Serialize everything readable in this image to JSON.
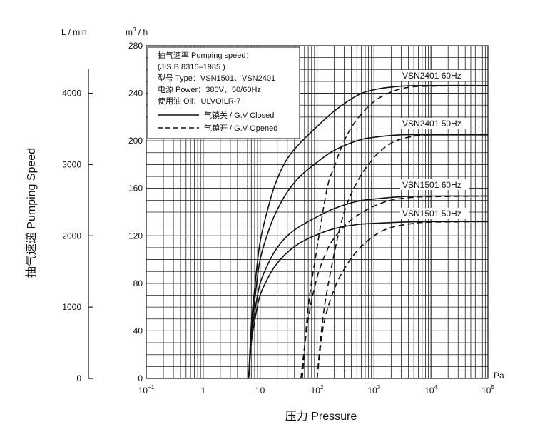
{
  "chart_data": {
    "type": "line",
    "xlabel": "压力 Pressure",
    "x_unit": "Pa",
    "xscale": "log",
    "xlim": [
      0.1,
      100000
    ],
    "x_ticks": [
      {
        "base": "10",
        "exp": "−1"
      },
      {
        "base": "1",
        "exp": ""
      },
      {
        "base": "10",
        "exp": ""
      },
      {
        "base": "10",
        "exp": "2"
      },
      {
        "base": "10",
        "exp": "3"
      },
      {
        "base": "10",
        "exp": "4"
      },
      {
        "base": "10",
        "exp": "5"
      }
    ],
    "ylabel": "抽气速递 Pumping Speed",
    "y_unit": "m³ / h",
    "y_unit_base": "m",
    "y_unit_sup": "3",
    "y_unit_rest": " / h",
    "ylim": [
      0,
      280
    ],
    "y_ticks": [
      "0",
      "40",
      "80",
      "120",
      "160",
      "200",
      "240",
      "280"
    ],
    "y2_unit": "L / min",
    "y2_ticks": [
      "0",
      "1000",
      "2000",
      "3000",
      "4000"
    ],
    "grid": true,
    "legend": {
      "lines": [
        "抽气速率 Pumping speed：",
        "(JIS B 8316–1985 )",
        "型号 Type：VSN1501、VSN2401",
        "电源 Power：380V、50/60Hz",
        "使用油 Oil：ULVOILR-7"
      ],
      "closed_label": "气镇关 / G.V Closed",
      "opened_label": "气镇开 / G.V Opened",
      "placement": "top-left"
    },
    "series": [
      {
        "name": "VSN2401 60Hz",
        "style": "solid",
        "x": [
          6.3,
          7,
          8,
          10,
          15,
          20,
          30,
          50,
          100,
          200,
          500,
          1000,
          3000,
          10000,
          100000
        ],
        "y": [
          0,
          45,
          75,
          115,
          150,
          168,
          185,
          198,
          212,
          225,
          238,
          243,
          246,
          246.5,
          246.5
        ]
      },
      {
        "name": "VSN2401 60Hz",
        "style": "dashed",
        "x": [
          55,
          70,
          100,
          150,
          200,
          300,
          500,
          1000,
          2000,
          4000,
          10000,
          100000
        ],
        "y": [
          0,
          60,
          110,
          160,
          178,
          200,
          218,
          233,
          241,
          245,
          246,
          246.5
        ]
      },
      {
        "name": "VSN2401 50Hz",
        "style": "solid",
        "x": [
          6.3,
          7,
          8,
          10,
          15,
          20,
          30,
          50,
          100,
          200,
          500,
          1000,
          3000,
          10000,
          100000
        ],
        "y": [
          0,
          38,
          65,
          100,
          128,
          142,
          157,
          170,
          182,
          192,
          200,
          203,
          205,
          205,
          205
        ]
      },
      {
        "name": "VSN2401 50Hz",
        "style": "dashed",
        "x": [
          100,
          130,
          200,
          300,
          500,
          1000,
          2000,
          4000,
          10000,
          100000
        ],
        "y": [
          0,
          55,
          105,
          140,
          165,
          186,
          198,
          203,
          205,
          205
        ]
      },
      {
        "name": "VSN1501 60Hz",
        "style": "solid",
        "x": [
          6.3,
          7,
          8,
          10,
          15,
          20,
          30,
          50,
          100,
          200,
          500,
          1000,
          3000,
          10000,
          100000
        ],
        "y": [
          0,
          35,
          55,
          80,
          100,
          110,
          120,
          128,
          136,
          143,
          149,
          151,
          153,
          153.5,
          153.5
        ]
      },
      {
        "name": "VSN1501 60Hz",
        "style": "dashed",
        "x": [
          52,
          70,
          100,
          150,
          200,
          300,
          500,
          1000,
          2000,
          5000,
          10000,
          100000
        ],
        "y": [
          0,
          50,
          85,
          108,
          118,
          128,
          137,
          145,
          150,
          152.5,
          153,
          153.5
        ]
      },
      {
        "name": "VSN1501 50Hz",
        "style": "solid",
        "x": [
          6.3,
          7,
          8,
          10,
          15,
          20,
          30,
          50,
          100,
          200,
          500,
          1000,
          3000,
          10000,
          100000
        ],
        "y": [
          0,
          30,
          48,
          70,
          88,
          97,
          106,
          114,
          121,
          126,
          129.5,
          130.5,
          131.5,
          132,
          132
        ]
      },
      {
        "name": "VSN1501 50Hz",
        "style": "dashed",
        "x": [
          100,
          130,
          200,
          300,
          500,
          1000,
          2000,
          5000,
          10000,
          100000
        ],
        "y": [
          0,
          45,
          75,
          92,
          107,
          120,
          127,
          130.5,
          131.5,
          132
        ]
      }
    ],
    "curve_labels": [
      "VSN2401 60Hz",
      "VSN2401 50Hz",
      "VSN1501 60Hz",
      "VSN1501 50Hz"
    ],
    "colors": {
      "line": "#111111",
      "grid": "#222222",
      "background": "#ffffff"
    }
  }
}
